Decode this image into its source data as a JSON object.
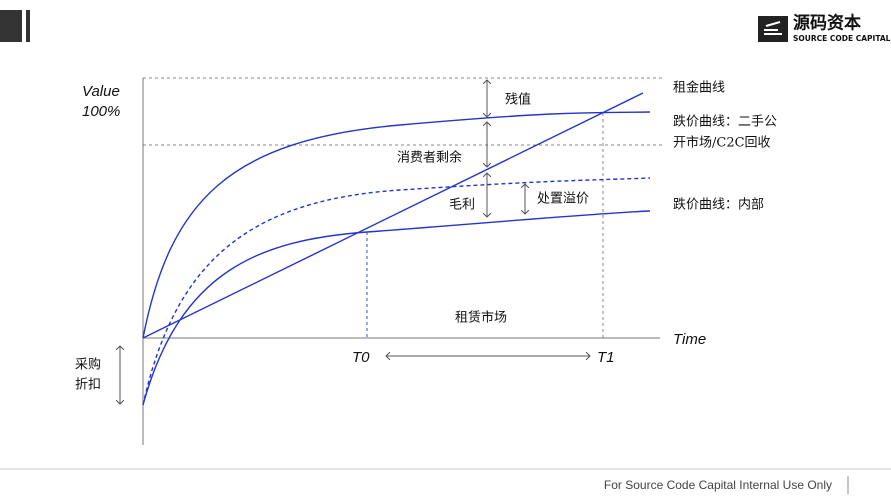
{
  "header": {
    "logo_name": "源码资本",
    "logo_sub": "SOURCE CODE CAPITAL"
  },
  "axes": {
    "y_title": "Value",
    "y_max": "100%",
    "x_title": "Time",
    "t0": "T0",
    "t1": "T1"
  },
  "curves": {
    "rent": "租金曲线",
    "public_1": "跌价曲线：二手公",
    "public_2": "开市场/C2C回收",
    "internal": "跌价曲线：内部"
  },
  "regions": {
    "residual": "残值",
    "surplus": "消费者剩余",
    "margin": "毛利",
    "premium": "处置溢价",
    "market": "租赁市场",
    "discount_1": "采购",
    "discount_2": "折扣"
  },
  "footer": "For Source Code Capital Internal Use Only"
}
